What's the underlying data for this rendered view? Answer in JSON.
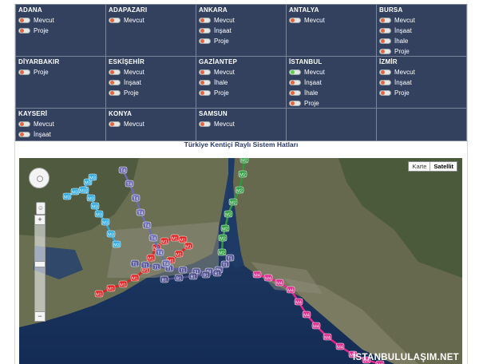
{
  "cities": [
    [
      {
        "name": "ADANA",
        "options": [
          {
            "label": "Mevcut"
          },
          {
            "label": "Proje"
          }
        ]
      },
      {
        "name": "ADAPAZARI",
        "options": [
          {
            "label": "Mevcut"
          }
        ]
      },
      {
        "name": "ANKARA",
        "options": [
          {
            "label": "Mevcut"
          },
          {
            "label": "İnşaat"
          },
          {
            "label": "Proje"
          }
        ]
      },
      {
        "name": "ANTALYA",
        "options": [
          {
            "label": "Mevcut"
          }
        ]
      },
      {
        "name": "BURSA",
        "options": [
          {
            "label": "Mevcut"
          },
          {
            "label": "İnşaat"
          },
          {
            "label": "İhale"
          },
          {
            "label": "Proje"
          }
        ]
      }
    ],
    [
      {
        "name": "DİYARBAKIR",
        "options": [
          {
            "label": "Proje"
          }
        ]
      },
      {
        "name": "ESKİŞEHİR",
        "options": [
          {
            "label": "Mevcut"
          },
          {
            "label": "İnşaat"
          },
          {
            "label": "Proje"
          }
        ]
      },
      {
        "name": "GAZİANTEP",
        "options": [
          {
            "label": "Mevcut"
          },
          {
            "label": "İhale"
          },
          {
            "label": "Proje"
          }
        ]
      },
      {
        "name": "İSTANBUL",
        "options": [
          {
            "label": "Mevcut",
            "selected": true
          },
          {
            "label": "İnşaat"
          },
          {
            "label": "İhale"
          },
          {
            "label": "Proje"
          }
        ]
      },
      {
        "name": "İZMİR",
        "options": [
          {
            "label": "Mevcut"
          },
          {
            "label": "İnşaat"
          },
          {
            "label": "Proje"
          }
        ]
      }
    ],
    [
      {
        "name": "KAYSERİ",
        "options": [
          {
            "label": "Mevcut"
          },
          {
            "label": "İnşaat"
          }
        ]
      },
      {
        "name": "KONYA",
        "options": [
          {
            "label": "Mevcut"
          }
        ]
      },
      {
        "name": "SAMSUN",
        "options": [
          {
            "label": "Mevcut"
          }
        ]
      },
      {
        "name": "",
        "options": []
      },
      {
        "name": "",
        "options": []
      }
    ]
  ],
  "title": "Türkiye Kentiçi Raylı Sistem Hatları",
  "map": {
    "type_map": "Karte",
    "type_satellite": "Satellit",
    "zoom_in": "+",
    "zoom_out": "−",
    "watermark": "İSTANBULULAŞIM.NET",
    "lines": [
      {
        "label": "M1",
        "color": "#e02020"
      },
      {
        "label": "M2",
        "color": "#2c9a3c"
      },
      {
        "label": "M3",
        "color": "#2aa8e0"
      },
      {
        "label": "M4",
        "color": "#e0288c"
      },
      {
        "label": "T1",
        "color": "#5c5c9c"
      },
      {
        "label": "T4",
        "color": "#6c6cb4"
      },
      {
        "label": "B1",
        "color": "#4c4c88"
      }
    ]
  }
}
